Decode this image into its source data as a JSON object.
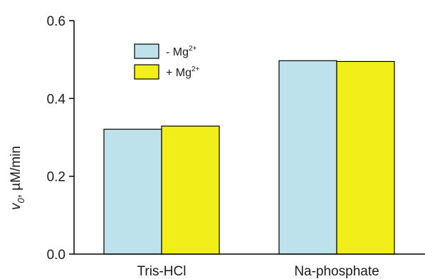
{
  "chart_data": {
    "type": "bar",
    "categories": [
      "Tris-HCl",
      "Na-phosphate"
    ],
    "series": [
      {
        "name": "- Mg",
        "sup": "2+",
        "color": "#bde2ec",
        "values": [
          0.321,
          0.497
        ]
      },
      {
        "name": "+ Mg",
        "sup": "2+",
        "color": "#f2ee1a",
        "values": [
          0.329,
          0.495
        ]
      }
    ],
    "ylim": [
      0.0,
      0.6
    ],
    "yticks": [
      "0.0",
      "0.2",
      "0.4",
      "0.6"
    ],
    "ylabel": {
      "symbol": "v",
      "subscript": "0",
      "unit": ", µM/min"
    },
    "legend_position": "top-left",
    "grid": false
  }
}
